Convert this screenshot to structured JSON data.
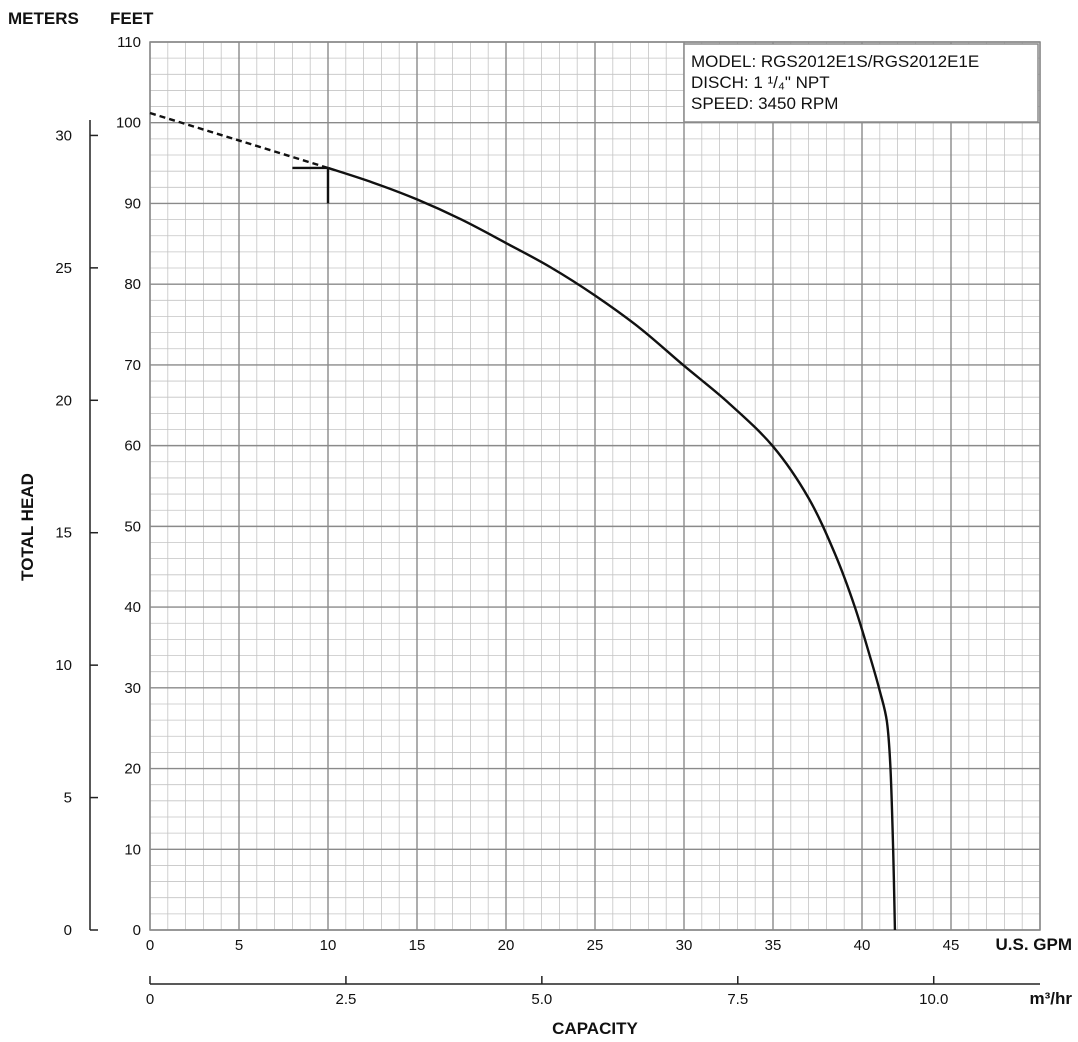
{
  "chart_data": {
    "type": "line",
    "units": {
      "left_axis": "METERS",
      "top_axis": "FEET",
      "x_primary": "U.S. GPM",
      "x_secondary": "m³/hr"
    },
    "xlabel": "CAPACITY",
    "ylabel": "TOTAL HEAD",
    "x_primary_axis": {
      "range": [
        0,
        50
      ],
      "ticks": [
        "0",
        "5",
        "10",
        "15",
        "20",
        "25",
        "30",
        "35",
        "40",
        "45"
      ]
    },
    "x_secondary_axis": {
      "range_gpm": [
        0,
        50
      ],
      "ticks": [
        "0",
        "2.5",
        "5.0",
        "7.5",
        "10.0"
      ],
      "tick_positions_gpm": [
        0,
        11.007,
        22.014,
        33.021,
        44.029
      ]
    },
    "y_feet_axis": {
      "range": [
        0,
        110
      ],
      "ticks": [
        "0",
        "10",
        "20",
        "30",
        "40",
        "50",
        "60",
        "70",
        "80",
        "90",
        "100",
        "110"
      ]
    },
    "y_meters_axis": {
      "range": [
        0,
        30
      ],
      "ticks": [
        "0",
        "5",
        "10",
        "15",
        "20",
        "25",
        "30"
      ]
    },
    "grid": true,
    "legend": "top-right",
    "info_box": {
      "model": "MODEL: RGS2012E1S/RGS2012E1E",
      "discharge": "DISCH: 1 ¹/₄\" NPT",
      "speed": "SPEED: 3450 RPM"
    },
    "series": [
      {
        "style": "dashed",
        "points": [
          [
            0,
            101.2
          ],
          [
            10,
            94.4
          ]
        ]
      },
      {
        "style": "solid",
        "points": [
          [
            10,
            94.4
          ],
          [
            12.5,
            92.6
          ],
          [
            15,
            90.5
          ],
          [
            17.5,
            88.0
          ],
          [
            20,
            85.1
          ],
          [
            22.5,
            82.1
          ],
          [
            25,
            78.6
          ],
          [
            27.5,
            74.6
          ],
          [
            30,
            69.9
          ],
          [
            32.5,
            65.3
          ],
          [
            35,
            59.9
          ],
          [
            37,
            53.5
          ],
          [
            38.5,
            46.5
          ],
          [
            39.6,
            40.0
          ],
          [
            40.5,
            33.5
          ],
          [
            41.0,
            29.6
          ],
          [
            41.4,
            25.8
          ],
          [
            41.6,
            20.0
          ],
          [
            41.75,
            10.0
          ],
          [
            41.85,
            0
          ]
        ]
      }
    ],
    "marker": {
      "x": 10,
      "y": 94.4,
      "y_low": 90,
      "x_left": 8
    }
  }
}
